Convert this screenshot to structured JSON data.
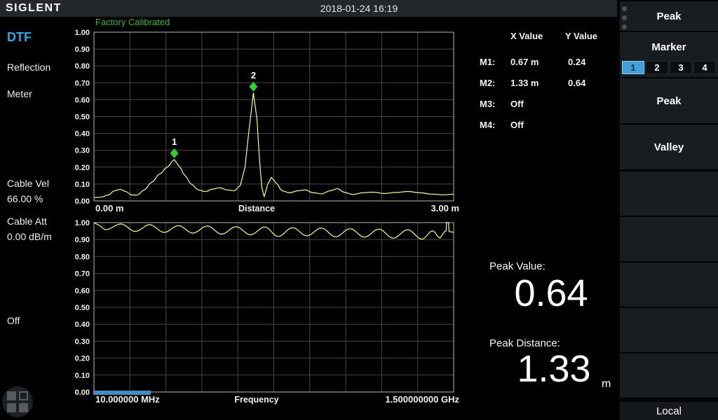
{
  "header": {
    "logo": "SIGLENT",
    "datetime": "2018-01-24 16:19"
  },
  "status": {
    "calibration": "Factory Calibrated"
  },
  "left_panel": {
    "mode": "DTF",
    "measure": "Reflection",
    "unit": "Meter",
    "cable_vel_label": "Cable Vel",
    "cable_vel_value": "66.00 %",
    "cable_att_label": "Cable Att",
    "cable_att_value": "0.00 dB/m",
    "window_state": "Off"
  },
  "marker_table": {
    "col_x": "X  Value",
    "col_y": "Y  Value",
    "rows": [
      {
        "name": "M1:",
        "x": "0.67 m",
        "y": "0.24"
      },
      {
        "name": "M2:",
        "x": "1.33 m",
        "y": "0.64"
      },
      {
        "name": "M3:",
        "x": "Off",
        "y": ""
      },
      {
        "name": "M4:",
        "x": "Off",
        "y": ""
      }
    ]
  },
  "peak_readout": {
    "value_label": "Peak Value:",
    "value": "0.64",
    "distance_label": "Peak Distance:",
    "distance": "1.33",
    "distance_unit": "m"
  },
  "menu": {
    "title": "Peak",
    "marker": {
      "label": "Marker",
      "options": [
        "1",
        "2",
        "3",
        "4"
      ],
      "selected": "1"
    },
    "buttons": [
      "Peak",
      "Valley"
    ],
    "local": "Local"
  },
  "colors": {
    "accent_blue": "#459fd7",
    "trace_yellow": "#ffff70",
    "marker_green": "#2fd32f",
    "calibrated_green": "#2eb82e",
    "mode_cyan": "#29a9e1",
    "topbar_gray": "#24282b"
  },
  "chart_data": [
    {
      "type": "line",
      "name": "dtf-distance",
      "xlabel": "Distance",
      "x_start_label": "0.00 m",
      "x_end_label": "3.00 m",
      "xlim": [
        0,
        3
      ],
      "ylim": [
        0,
        1
      ],
      "grid": true,
      "yticks": [
        "0.00",
        "0.10",
        "0.20",
        "0.30",
        "0.40",
        "0.50",
        "0.60",
        "0.70",
        "0.80",
        "0.90",
        "1.00"
      ],
      "marker_color": "#2fd32f",
      "markers": [
        {
          "id": "1",
          "x": 0.67,
          "y": 0.245
        },
        {
          "id": "2",
          "x": 1.33,
          "y": 0.64
        }
      ],
      "series": [
        {
          "name": "dtf",
          "color": "#ffff70",
          "points": [
            [
              0.0,
              0.02
            ],
            [
              0.06,
              0.022
            ],
            [
              0.12,
              0.035
            ],
            [
              0.17,
              0.06
            ],
            [
              0.22,
              0.068
            ],
            [
              0.27,
              0.055
            ],
            [
              0.31,
              0.035
            ],
            [
              0.36,
              0.035
            ],
            [
              0.42,
              0.065
            ],
            [
              0.48,
              0.11
            ],
            [
              0.55,
              0.16
            ],
            [
              0.61,
              0.2
            ],
            [
              0.67,
              0.245
            ],
            [
              0.71,
              0.205
            ],
            [
              0.76,
              0.15
            ],
            [
              0.81,
              0.1
            ],
            [
              0.87,
              0.065
            ],
            [
              0.93,
              0.055
            ],
            [
              0.99,
              0.07
            ],
            [
              1.05,
              0.078
            ],
            [
              1.11,
              0.065
            ],
            [
              1.17,
              0.06
            ],
            [
              1.22,
              0.09
            ],
            [
              1.26,
              0.2
            ],
            [
              1.29,
              0.4
            ],
            [
              1.33,
              0.64
            ],
            [
              1.36,
              0.48
            ],
            [
              1.38,
              0.25
            ],
            [
              1.4,
              0.08
            ],
            [
              1.42,
              0.025
            ],
            [
              1.45,
              0.1
            ],
            [
              1.48,
              0.14
            ],
            [
              1.52,
              0.105
            ],
            [
              1.57,
              0.06
            ],
            [
              1.63,
              0.048
            ],
            [
              1.7,
              0.06
            ],
            [
              1.76,
              0.065
            ],
            [
              1.83,
              0.048
            ],
            [
              1.9,
              0.042
            ],
            [
              1.97,
              0.06
            ],
            [
              2.03,
              0.073
            ],
            [
              2.09,
              0.05
            ],
            [
              2.16,
              0.038
            ],
            [
              2.24,
              0.048
            ],
            [
              2.33,
              0.052
            ],
            [
              2.42,
              0.044
            ],
            [
              2.52,
              0.05
            ],
            [
              2.62,
              0.056
            ],
            [
              2.72,
              0.048
            ],
            [
              2.82,
              0.04
            ],
            [
              2.92,
              0.036
            ],
            [
              3.0,
              0.04
            ]
          ]
        }
      ]
    },
    {
      "type": "line",
      "name": "frequency-response",
      "xlabel": "Frequency",
      "x_start_label": "10.000000 MHz",
      "x_end_label": "1.500000000 GHz",
      "xlim": [
        0,
        1
      ],
      "ylim": [
        0,
        1
      ],
      "grid": true,
      "yticks": [
        "0.00",
        "0.10",
        "0.20",
        "0.30",
        "0.40",
        "0.50",
        "0.60",
        "0.70",
        "0.80",
        "0.90",
        "1.00"
      ],
      "sweep_progress": 0.16,
      "progress_color": "#3e8fc4",
      "series": [
        {
          "name": "freq",
          "color": "#ffff70",
          "points": [
            [
              0.0,
              1.0
            ],
            [
              0.013,
              0.985
            ],
            [
              0.032,
              0.958
            ],
            [
              0.075,
              0.992
            ],
            [
              0.115,
              0.948
            ],
            [
              0.155,
              0.988
            ],
            [
              0.195,
              0.942
            ],
            [
              0.235,
              0.982
            ],
            [
              0.275,
              0.938
            ],
            [
              0.315,
              0.98
            ],
            [
              0.355,
              0.932
            ],
            [
              0.395,
              0.976
            ],
            [
              0.435,
              0.928
            ],
            [
              0.475,
              0.974
            ],
            [
              0.512,
              0.918
            ],
            [
              0.552,
              0.97
            ],
            [
              0.592,
              0.922
            ],
            [
              0.632,
              0.968
            ],
            [
              0.672,
              0.916
            ],
            [
              0.712,
              0.964
            ],
            [
              0.752,
              0.914
            ],
            [
              0.792,
              0.962
            ],
            [
              0.832,
              0.908
            ],
            [
              0.872,
              0.958
            ],
            [
              0.912,
              0.902
            ],
            [
              0.942,
              0.952
            ],
            [
              0.962,
              0.908
            ],
            [
              0.975,
              0.948
            ],
            [
              0.979,
              0.95
            ],
            [
              0.98,
              1.0
            ],
            [
              0.986,
              1.0
            ],
            [
              0.987,
              0.948
            ],
            [
              1.0,
              0.942
            ]
          ]
        }
      ]
    }
  ]
}
